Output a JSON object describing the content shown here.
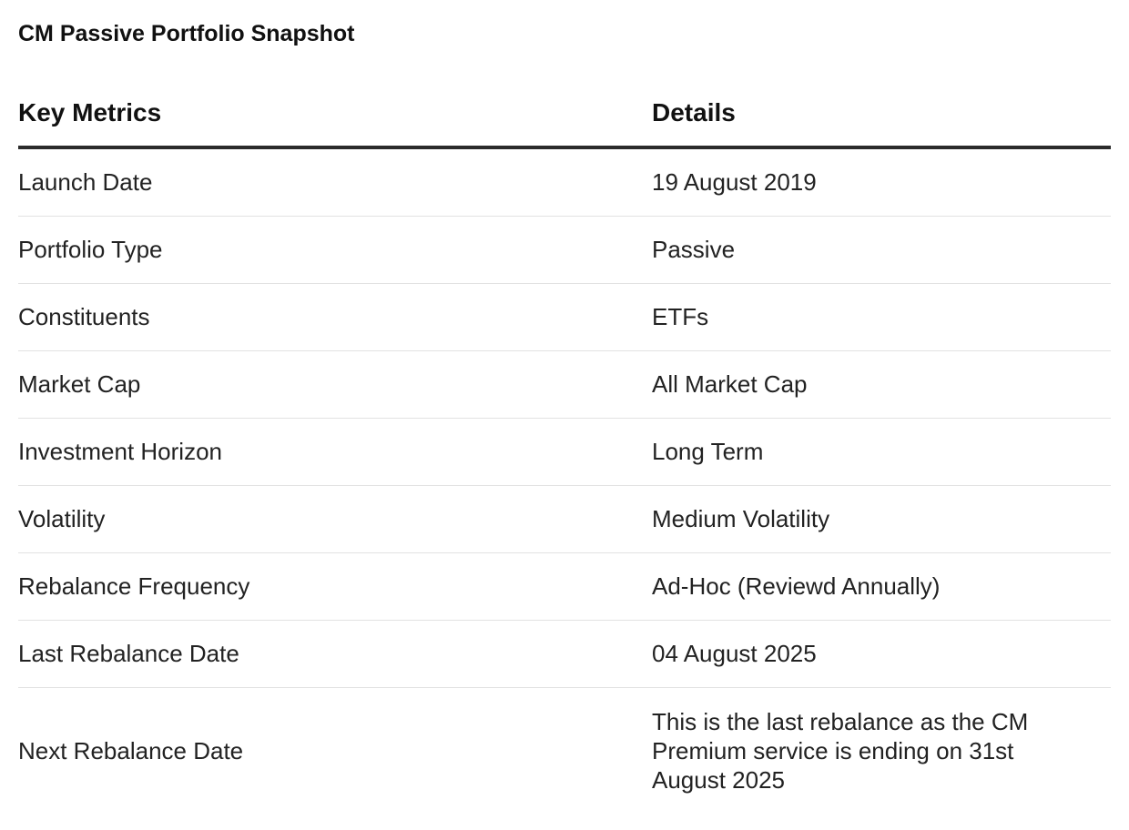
{
  "title": "CM Passive Portfolio Snapshot",
  "table": {
    "headers": {
      "metric": "Key Metrics",
      "details": "Details"
    },
    "rows": [
      {
        "metric": "Launch Date",
        "details": "19 August 2019"
      },
      {
        "metric": "Portfolio Type",
        "details": "Passive"
      },
      {
        "metric": "Constituents",
        "details": "ETFs"
      },
      {
        "metric": "Market Cap",
        "details": "All Market Cap"
      },
      {
        "metric": "Investment Horizon",
        "details": "Long Term"
      },
      {
        "metric": "Volatility",
        "details": "Medium Volatility"
      },
      {
        "metric": "Rebalance Frequency",
        "details": "Ad-Hoc (Reviewd Annually)"
      },
      {
        "metric": "Last Rebalance Date",
        "details": "04 August 2025"
      },
      {
        "metric": "Next Rebalance Date",
        "details": "This is the last rebalance as the CM Premium service is ending on 31st August 2025"
      }
    ]
  }
}
